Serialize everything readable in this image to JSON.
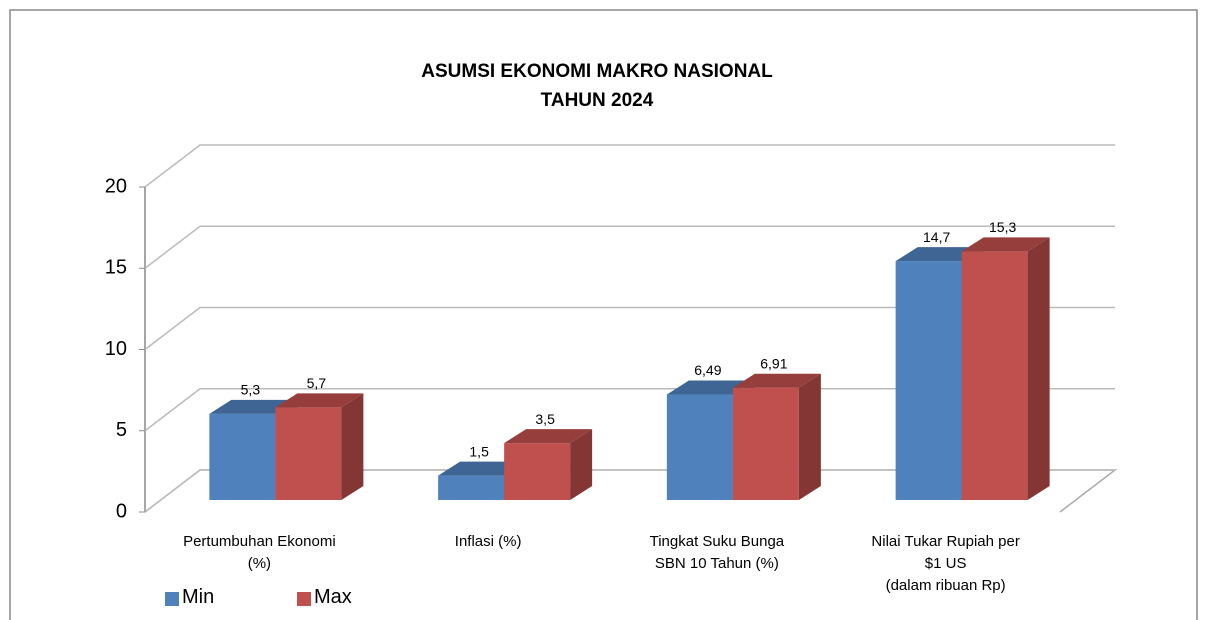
{
  "chart_data": {
    "type": "bar3d",
    "title": "ASUMSI EKONOMI MAKRO NASIONAL\nTAHUN 2024",
    "categories": [
      "Pertumbuhan Ekonomi\n(%)",
      "Inflasi (%)",
      "Tingkat Suku Bunga\nSBN 10 Tahun (%)",
      "Nilai Tukar Rupiah per\n$1 US\n(dalam ribuan Rp)"
    ],
    "series": [
      {
        "name": "Min",
        "color": "#4f81bd",
        "values": [
          5.3,
          1.5,
          6.49,
          14.7
        ],
        "value_labels": [
          "5,3",
          "1,5",
          "6,49",
          "14,7"
        ]
      },
      {
        "name": "Max",
        "color": "#c0504d",
        "values": [
          5.7,
          3.5,
          6.91,
          15.3
        ],
        "value_labels": [
          "5,7",
          "3,5",
          "6,91",
          "15,3"
        ]
      }
    ],
    "ylim": [
      0,
      20
    ],
    "yticks": [
      0,
      5,
      10,
      15,
      20
    ],
    "grid": true
  }
}
